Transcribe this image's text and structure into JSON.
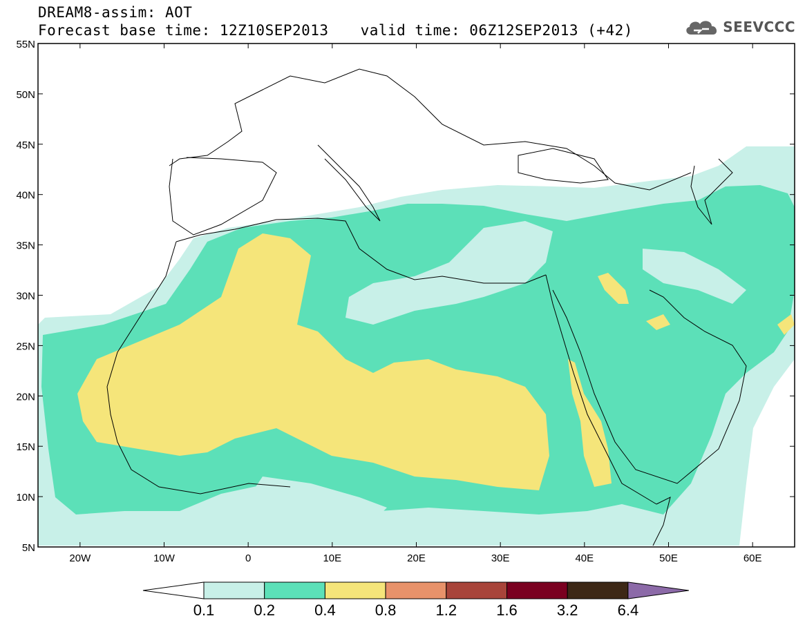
{
  "header": {
    "line1": "DREAM8-assim: AOT",
    "forecast_base": "Forecast base time: 12Z10SEP2013",
    "valid_time": "valid time: 06Z12SEP2013 (+42)",
    "logo_text": "SEEVCCC"
  },
  "map": {
    "variable": "AOT",
    "lon_range": [
      -25,
      65
    ],
    "lat_range": [
      5,
      55
    ],
    "lat_ticks": [
      "5N",
      "10N",
      "15N",
      "20N",
      "25N",
      "30N",
      "35N",
      "40N",
      "45N",
      "50N",
      "55N"
    ],
    "lon_ticks": [
      "20W",
      "10W",
      "0",
      "10E",
      "20E",
      "30E",
      "40E",
      "50E",
      "60E"
    ],
    "field_regions": [
      {
        "level": "0.1-0.2",
        "area": "Southern Sahel, Mediterranean, eastern Atlantic margins"
      },
      {
        "level": "0.2-0.4",
        "area": "Most of North Africa, Arabian Peninsula, Mediterranean"
      },
      {
        "level": "0.4-0.8",
        "area": "Western and central Sahara, Red Sea coast, Gulf spots"
      }
    ]
  },
  "colorbar": {
    "labels": [
      "0.1",
      "0.2",
      "0.4",
      "0.8",
      "1.2",
      "1.6",
      "3.2",
      "6.4"
    ],
    "colors": [
      "#ffffff",
      "#c8f0e8",
      "#5ce0b8",
      "#f5e57a",
      "#e8926a",
      "#a8443a",
      "#7a0020",
      "#3d2816",
      "#8c6aa8"
    ]
  }
}
